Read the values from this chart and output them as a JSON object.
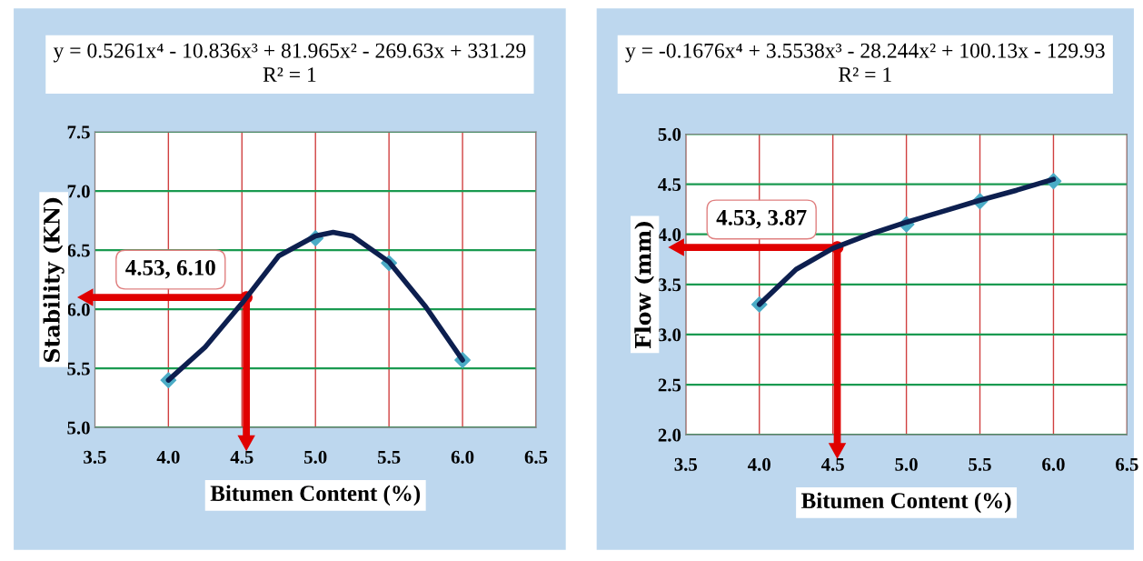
{
  "chart_data": [
    {
      "type": "line",
      "xlabel": "Bitumen Content (%)",
      "ylabel": "Stability (KN)",
      "xlim": [
        3.5,
        6.5
      ],
      "xticks": [
        {
          "value": 3.5,
          "label": "3.5"
        },
        {
          "value": 4.0,
          "label": "4.0"
        },
        {
          "value": 4.5,
          "label": "4.5"
        },
        {
          "value": 5.0,
          "label": "5.0"
        },
        {
          "value": 5.5,
          "label": "5.5"
        },
        {
          "value": 6.0,
          "label": "6.0"
        },
        {
          "value": 6.5,
          "label": "6.5"
        }
      ],
      "ylim": [
        5.0,
        7.5
      ],
      "yticks": [
        {
          "value": 5.0,
          "label": "5.0"
        },
        {
          "value": 5.5,
          "label": "5.5"
        },
        {
          "value": 6.0,
          "label": "6.0"
        },
        {
          "value": 6.5,
          "label": "6.5"
        },
        {
          "value": 7.0,
          "label": "7.0"
        },
        {
          "value": 7.5,
          "label": "7.5"
        }
      ],
      "grid": true,
      "series": [
        {
          "type": "scatter",
          "marker": "diamond",
          "color": "#4bacc6",
          "x": [
            4.0,
            5.0,
            5.5,
            6.0
          ],
          "values": [
            5.4,
            6.6,
            6.39,
            5.57
          ]
        },
        {
          "type": "line",
          "color": "#0d1f4f",
          "x": [
            4.0,
            4.25,
            4.5,
            4.75,
            5.0,
            5.12,
            5.25,
            5.5,
            5.75,
            6.0
          ],
          "values": [
            5.4,
            5.68,
            6.05,
            6.45,
            6.62,
            6.65,
            6.62,
            6.4,
            6.02,
            5.57
          ]
        }
      ],
      "annotations": [
        "y = 0.5261x⁴ - 10.836x³ + 81.965x² - 269.63x + 331.29",
        "R² = 1",
        {
          "text": "4.53, 6.10",
          "x": 4.53,
          "y": 6.1
        }
      ]
    },
    {
      "type": "line",
      "xlabel": "Bitumen Content (%)",
      "ylabel": "Flow (mm)",
      "xlim": [
        3.5,
        6.5
      ],
      "xticks": [
        {
          "value": 3.5,
          "label": "3.5"
        },
        {
          "value": 4.0,
          "label": "4.0"
        },
        {
          "value": 4.5,
          "label": "4.5"
        },
        {
          "value": 5.0,
          "label": "5.0"
        },
        {
          "value": 5.5,
          "label": "5.5"
        },
        {
          "value": 6.0,
          "label": "6.0"
        },
        {
          "value": 6.5,
          "label": "6.5"
        }
      ],
      "ylim": [
        2.0,
        5.0
      ],
      "yticks": [
        {
          "value": 2.0,
          "label": "2.0"
        },
        {
          "value": 2.5,
          "label": "2.5"
        },
        {
          "value": 3.0,
          "label": "3.0"
        },
        {
          "value": 3.5,
          "label": "3.5"
        },
        {
          "value": 4.0,
          "label": "4.0"
        },
        {
          "value": 4.5,
          "label": "4.5"
        },
        {
          "value": 5.0,
          "label": "5.0"
        }
      ],
      "grid": true,
      "series": [
        {
          "type": "scatter",
          "marker": "diamond",
          "color": "#4bacc6",
          "x": [
            4.0,
            5.0,
            5.5,
            6.0
          ],
          "values": [
            3.3,
            4.1,
            4.33,
            4.53
          ]
        },
        {
          "type": "line",
          "color": "#0d1f4f",
          "x": [
            4.0,
            4.25,
            4.5,
            4.75,
            5.0,
            5.25,
            5.5,
            5.75,
            6.0
          ],
          "values": [
            3.3,
            3.65,
            3.86,
            4.0,
            4.12,
            4.23,
            4.34,
            4.44,
            4.55
          ]
        }
      ],
      "annotations": [
        "y = -0.1676x⁴ + 3.5538x³ - 28.244x² + 100.13x - 129.93",
        "R² = 1",
        {
          "text": "4.53, 3.87",
          "x": 4.53,
          "y": 3.87
        }
      ]
    }
  ]
}
